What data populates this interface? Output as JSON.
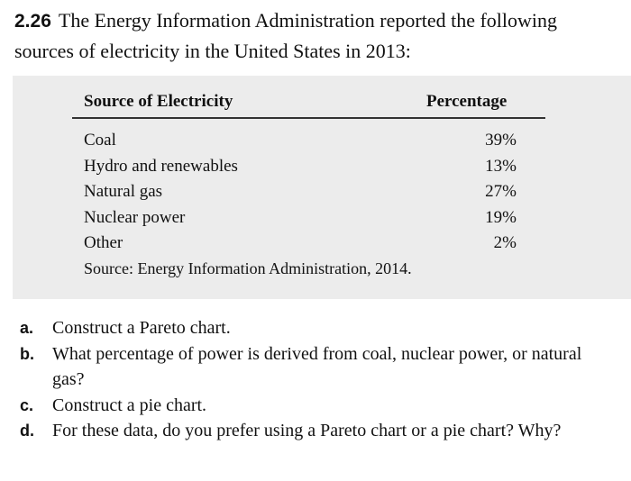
{
  "problem": {
    "number": "2.26",
    "text": "The Energy Information Administration reported the following sources of electricity in the United States in 2013:"
  },
  "table": {
    "headers": {
      "source": "Source of Electricity",
      "percentage": "Percentage"
    },
    "rows": [
      {
        "source": "Coal",
        "percentage": "39%"
      },
      {
        "source": "Hydro and renewables",
        "percentage": "13%"
      },
      {
        "source": "Natural gas",
        "percentage": "27%"
      },
      {
        "source": "Nuclear power",
        "percentage": "19%"
      },
      {
        "source": "Other",
        "percentage": "2%"
      }
    ],
    "source_note": "Source: Energy Information Administration, 2014."
  },
  "parts": [
    {
      "letter": "a.",
      "text": "Construct a Pareto chart."
    },
    {
      "letter": "b.",
      "text": "What percentage of power is derived from coal, nuclear power, or natural gas?"
    },
    {
      "letter": "c.",
      "text": "Construct a pie chart."
    },
    {
      "letter": "d.",
      "text": "For these data, do you prefer using a Pareto chart or a pie chart? Why?"
    }
  ]
}
